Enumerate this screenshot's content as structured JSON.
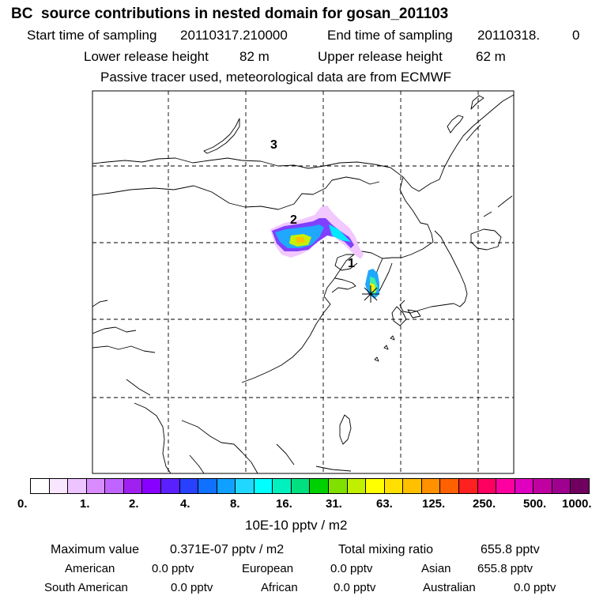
{
  "title": "BC  source contributions in nested domain for gosan_201103",
  "sampling": {
    "start_label": "Start time of sampling",
    "start_value": "20110317.210000",
    "end_label": "End time of sampling",
    "end_value": "20110318.",
    "end_suffix": "0"
  },
  "release": {
    "lower_label": "Lower release height",
    "lower_value": "82 m",
    "upper_label": "Upper release height",
    "upper_value": "62 m"
  },
  "tracer_note": "Passive tracer used, meteorological data are from ECMWF",
  "map": {
    "region_labels": [
      "1",
      "2",
      "3"
    ]
  },
  "colorbar": {
    "tick_labels": [
      "0.",
      "1.",
      "2.",
      "4.",
      "8.",
      "16.",
      "31.",
      "63.",
      "125.",
      "250.",
      "500.",
      "1000."
    ],
    "colors": [
      "#ffffff",
      "#f8e6ff",
      "#ecc4ff",
      "#d98cff",
      "#c064ff",
      "#a020f0",
      "#8800ff",
      "#5a20ff",
      "#2840ff",
      "#1070ff",
      "#10a0ff",
      "#20d8ff",
      "#00ffff",
      "#00f0c0",
      "#00e080",
      "#00d000",
      "#80e000",
      "#c0f000",
      "#ffff00",
      "#ffe000",
      "#ffc000",
      "#ff9000",
      "#ff6000",
      "#ff2020",
      "#ff0060",
      "#ff00a0",
      "#e000c0",
      "#c000a0",
      "#a00090",
      "#700060"
    ],
    "unit": "10E-10 pptv / m2"
  },
  "summary": {
    "max_label": "Maximum value",
    "max_value": "0.371E-07 pptv / m2",
    "total_label": "Total mixing ratio",
    "total_value": "655.8 pptv",
    "regions": [
      {
        "name": "American",
        "value": "0.0 pptv"
      },
      {
        "name": "European",
        "value": "0.0 pptv"
      },
      {
        "name": "Asian",
        "value": "655.8 pptv"
      },
      {
        "name": "South American",
        "value": "0.0 pptv"
      },
      {
        "name": "African",
        "value": "0.0 pptv"
      },
      {
        "name": "Australian",
        "value": "0.0 pptv"
      }
    ]
  }
}
